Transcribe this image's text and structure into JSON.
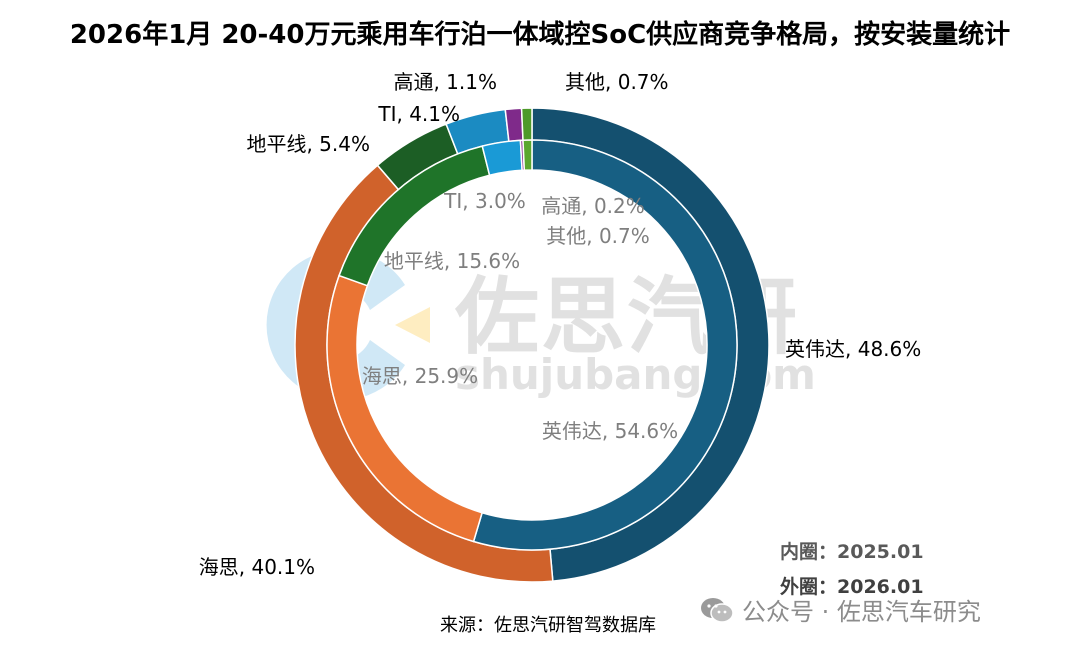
{
  "title": "2026年1月 20-40万元乘用车行泊一体域控SoC供应商竞争格局，按安装量统计",
  "chart_data": {
    "type": "donut",
    "title": "2026年1月 20-40万元乘用车行泊一体域控SoC供应商竞争格局，按安装量统计",
    "rings": [
      {
        "ring": "outer",
        "period": "2026.01",
        "slices": [
          {
            "name": "英伟达",
            "value": 48.6,
            "label": "英伟达, 48.6%",
            "color": "#14506f"
          },
          {
            "name": "海思",
            "value": 40.1,
            "label": "海思, 40.1%",
            "color": "#d0622b"
          },
          {
            "name": "地平线",
            "value": 5.4,
            "label": "地平线, 5.4%",
            "color": "#1c5e25"
          },
          {
            "name": "TI",
            "value": 4.1,
            "label": "TI, 4.1%",
            "color": "#1b8bc2"
          },
          {
            "name": "高通",
            "value": 1.1,
            "label": "高通, 1.1%",
            "color": "#7f2a8a"
          },
          {
            "name": "其他",
            "value": 0.7,
            "label": "其他, 0.7%",
            "color": "#4e9a2a"
          }
        ]
      },
      {
        "ring": "inner",
        "period": "2025.01",
        "slices": [
          {
            "name": "英伟达",
            "value": 54.6,
            "label": "英伟达, 54.6%",
            "color": "#175f83"
          },
          {
            "name": "海思",
            "value": 25.9,
            "label": "海思, 25.9%",
            "color": "#ea7434"
          },
          {
            "name": "地平线",
            "value": 15.6,
            "label": "地平线, 15.6%",
            "color": "#1f7429"
          },
          {
            "name": "TI",
            "value": 3.0,
            "label": "TI, 3.0%",
            "color": "#1a9ad6"
          },
          {
            "name": "高通",
            "value": 0.2,
            "label": "高通, 0.2%",
            "color": "#8a3094"
          },
          {
            "name": "其他",
            "value": 0.7,
            "label": "其他, 0.7%",
            "color": "#5aa72f"
          }
        ]
      }
    ],
    "legend_notes": {
      "inner": "内圈：2025.01",
      "outer": "外圈：2026.01"
    }
  },
  "watermark": {
    "text": "佐思汽研",
    "url": "shujubang.com"
  },
  "source": "来源：佐思汽研智驾数据库",
  "footer_brand": "公众号 · 佐思汽车研究"
}
